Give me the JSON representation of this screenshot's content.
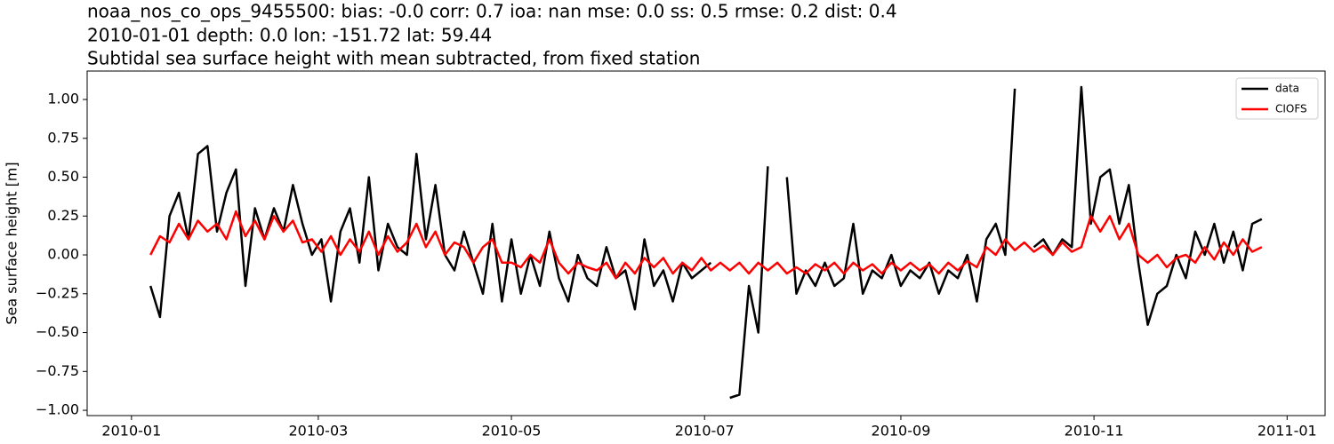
{
  "chart_data": {
    "type": "line",
    "title": [
      "noaa_nos_co_ops_9455500: bias: -0.0  corr: 0.7  ioa: nan  mse: 0.0  ss: 0.5  rmse: 0.2  dist: 0.4",
      "2010-01-01 depth: 0.0 lon: -151.72 lat: 59.44",
      "Subtidal sea surface height with mean subtracted, from fixed station"
    ],
    "ylabel": "Sea surface height [m]",
    "x": [
      6,
      9,
      12,
      15,
      18,
      21,
      24,
      27,
      30,
      33,
      36,
      39,
      42,
      45,
      48,
      51,
      54,
      57,
      60,
      63,
      66,
      69,
      72,
      75,
      78,
      81,
      84,
      87,
      90,
      93,
      96,
      99,
      102,
      105,
      108,
      111,
      114,
      117,
      120,
      123,
      126,
      129,
      132,
      135,
      138,
      141,
      144,
      147,
      150,
      153,
      156,
      159,
      162,
      165,
      168,
      171,
      174,
      177,
      180,
      183,
      186,
      189,
      192,
      195,
      198,
      201,
      204,
      207,
      210,
      213,
      216,
      219,
      222,
      225,
      228,
      231,
      234,
      237,
      240,
      243,
      246,
      249,
      252,
      255,
      258,
      261,
      264,
      267,
      270,
      273,
      276,
      279,
      282,
      285,
      288,
      291,
      294,
      297,
      300,
      303,
      306,
      309,
      312,
      315,
      318,
      321,
      324,
      327,
      330,
      333,
      336,
      339,
      342,
      345,
      348,
      351,
      354,
      357
    ],
    "series": [
      {
        "name": "data",
        "color": "#000000",
        "values": [
          -0.2,
          -0.4,
          0.25,
          0.4,
          0.1,
          0.65,
          0.7,
          0.15,
          0.4,
          0.55,
          -0.2,
          0.3,
          0.1,
          0.3,
          0.15,
          0.45,
          0.2,
          0.0,
          0.1,
          -0.3,
          0.15,
          0.3,
          -0.05,
          0.5,
          -0.1,
          0.2,
          0.05,
          0.0,
          0.65,
          0.1,
          0.45,
          0.0,
          -0.1,
          0.15,
          -0.05,
          -0.25,
          0.2,
          -0.3,
          0.1,
          -0.25,
          0.0,
          -0.2,
          0.15,
          -0.15,
          -0.3,
          0.0,
          -0.15,
          -0.2,
          0.05,
          -0.15,
          -0.1,
          -0.35,
          0.1,
          -0.2,
          -0.1,
          -0.3,
          -0.05,
          -0.15,
          -0.1,
          -0.05,
          null,
          -0.92,
          -0.9,
          -0.2,
          -0.5,
          0.57,
          null,
          0.5,
          -0.25,
          -0.1,
          -0.2,
          -0.05,
          -0.2,
          -0.15,
          0.2,
          -0.25,
          -0.1,
          -0.15,
          0.0,
          -0.2,
          -0.1,
          -0.15,
          -0.05,
          -0.25,
          -0.1,
          -0.15,
          0.0,
          -0.3,
          0.1,
          0.2,
          0.0,
          1.07,
          null,
          0.05,
          0.1,
          0.0,
          0.1,
          0.05,
          1.08,
          0.2,
          0.5,
          0.55,
          0.2,
          0.45,
          -0.05,
          -0.45,
          -0.25,
          -0.2,
          0.0,
          -0.15,
          0.15,
          0.0,
          0.2,
          -0.05,
          0.15,
          -0.1,
          0.2,
          0.23
        ]
      },
      {
        "name": "CIOFS",
        "color": "#ff0000",
        "values": [
          0.0,
          0.12,
          0.08,
          0.2,
          0.1,
          0.22,
          0.15,
          0.2,
          0.1,
          0.28,
          0.12,
          0.22,
          0.1,
          0.25,
          0.15,
          0.22,
          0.08,
          0.1,
          0.02,
          0.12,
          0.0,
          0.1,
          0.02,
          0.15,
          0.0,
          0.12,
          0.02,
          0.08,
          0.2,
          0.05,
          0.15,
          0.0,
          0.08,
          0.05,
          -0.05,
          0.05,
          0.1,
          -0.05,
          -0.05,
          -0.08,
          0.0,
          -0.05,
          0.1,
          -0.05,
          -0.12,
          -0.05,
          -0.08,
          -0.1,
          -0.05,
          -0.15,
          -0.05,
          -0.12,
          -0.02,
          -0.08,
          -0.02,
          -0.12,
          -0.05,
          -0.1,
          -0.02,
          -0.1,
          -0.05,
          -0.1,
          -0.05,
          -0.12,
          -0.05,
          -0.1,
          -0.05,
          -0.12,
          -0.08,
          -0.12,
          -0.06,
          -0.1,
          -0.05,
          -0.12,
          -0.05,
          -0.1,
          -0.06,
          -0.12,
          -0.05,
          -0.1,
          -0.05,
          -0.1,
          -0.06,
          -0.12,
          -0.05,
          -0.1,
          -0.04,
          -0.08,
          0.05,
          0.0,
          0.1,
          0.03,
          0.08,
          0.02,
          0.06,
          0.0,
          0.08,
          0.02,
          0.05,
          0.25,
          0.15,
          0.25,
          0.1,
          0.2,
          0.0,
          -0.05,
          0.0,
          -0.08,
          -0.02,
          0.0,
          -0.05,
          0.05,
          -0.03,
          0.08,
          0.0,
          0.1,
          0.02,
          0.05
        ]
      }
    ],
    "xlim": [
      -14,
      377
    ],
    "xticks": [
      {
        "value": 0,
        "label": "2010-01"
      },
      {
        "value": 59,
        "label": "2010-03"
      },
      {
        "value": 120,
        "label": "2010-05"
      },
      {
        "value": 181,
        "label": "2010-07"
      },
      {
        "value": 243,
        "label": "2010-09"
      },
      {
        "value": 304,
        "label": "2010-11"
      },
      {
        "value": 365,
        "label": "2011-01"
      }
    ],
    "ylim": [
      -1.034,
      1.183
    ],
    "yticks": [
      {
        "value": -1,
        "label": "−1.00"
      },
      {
        "value": -0.75,
        "label": "−0.75"
      },
      {
        "value": -0.5,
        "label": "−0.50"
      },
      {
        "value": -0.25,
        "label": "−0.25"
      },
      {
        "value": 0,
        "label": "0.00"
      },
      {
        "value": 0.25,
        "label": "0.25"
      },
      {
        "value": 0.5,
        "label": "0.50"
      },
      {
        "value": 0.75,
        "label": "0.75"
      },
      {
        "value": 1,
        "label": "1.00"
      }
    ],
    "legend": "upper right"
  }
}
